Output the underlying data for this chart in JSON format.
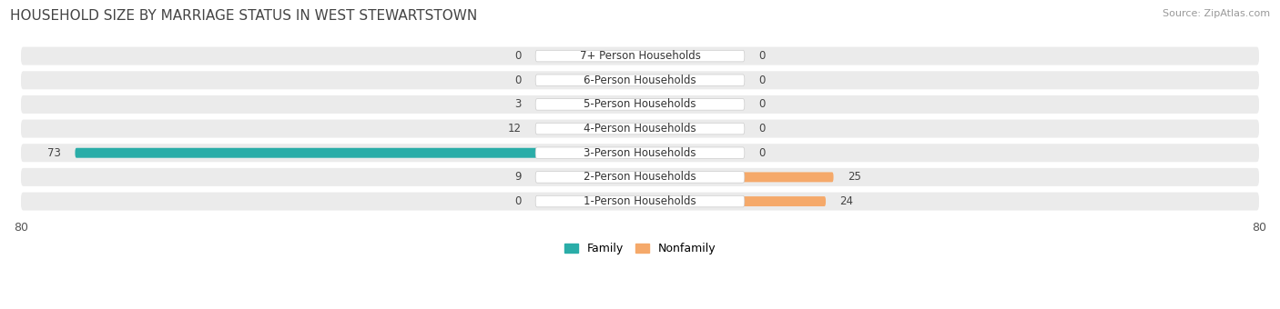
{
  "title": "HOUSEHOLD SIZE BY MARRIAGE STATUS IN WEST STEWARTSTOWN",
  "source": "Source: ZipAtlas.com",
  "categories": [
    "7+ Person Households",
    "6-Person Households",
    "5-Person Households",
    "4-Person Households",
    "3-Person Households",
    "2-Person Households",
    "1-Person Households"
  ],
  "family": [
    0,
    0,
    3,
    12,
    73,
    9,
    0
  ],
  "nonfamily": [
    0,
    0,
    0,
    0,
    0,
    25,
    24
  ],
  "xlim": 80,
  "family_color_dark": "#2aada8",
  "family_color_light": "#76c7c3",
  "nonfamily_color": "#f5a96a",
  "row_bg_color": "#ebebeb",
  "title_fontsize": 11,
  "source_fontsize": 8,
  "label_fontsize": 8.5,
  "value_fontsize": 8.5,
  "legend_fontsize": 9,
  "stub_size": 6
}
